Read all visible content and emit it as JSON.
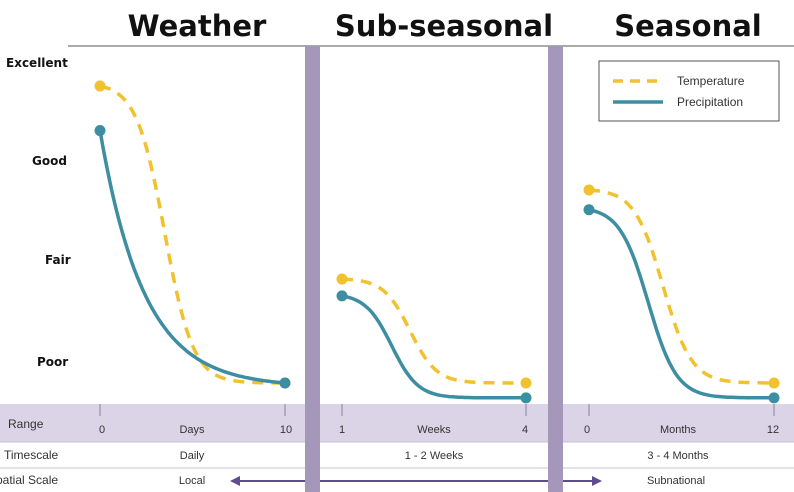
{
  "panels": [
    {
      "title": "Weather",
      "unit": "Days",
      "start_label": "0",
      "end_label": "10",
      "timescale": "Daily"
    },
    {
      "title": "Sub-seasonal",
      "unit": "Weeks",
      "start_label": "1",
      "end_label": "4",
      "timescale": "1 - 2 Weeks"
    },
    {
      "title": "Seasonal",
      "unit": "Months",
      "start_label": "0",
      "end_label": "12",
      "timescale": "3 - 4 Months"
    }
  ],
  "row_labels": {
    "range": "Range",
    "timescale": "Timescale",
    "spatial_scale": "Spatial Scale"
  },
  "spatial": {
    "left": "Local",
    "right": "Subnational"
  },
  "colors": {
    "temperature": "#f2c12e",
    "precipitation": "#3d8ea3",
    "divider": "#a497b9",
    "band": "#dad4e6",
    "arrow": "#5e4c8c"
  },
  "chart_data": {
    "type": "line",
    "y_categories": [
      "Poor",
      "Fair",
      "Good",
      "Excellent"
    ],
    "ylim": [
      0,
      3
    ],
    "legend": {
      "placement": "top-right"
    },
    "series": [
      {
        "name": "Temperature",
        "style": "dashed",
        "segments": [
          {
            "panel": "Weather",
            "start": 3.0,
            "end": 0.0
          },
          {
            "panel": "Sub-seasonal",
            "start": 1.05,
            "end": 0.0
          },
          {
            "panel": "Seasonal",
            "start": 1.95,
            "end": 0.0
          }
        ]
      },
      {
        "name": "Precipitation",
        "style": "solid",
        "segments": [
          {
            "panel": "Weather",
            "start": 2.55,
            "end": 0.0
          },
          {
            "panel": "Sub-seasonal",
            "start": 0.88,
            "end": -0.15
          },
          {
            "panel": "Seasonal",
            "start": 1.75,
            "end": -0.15
          }
        ]
      }
    ]
  }
}
